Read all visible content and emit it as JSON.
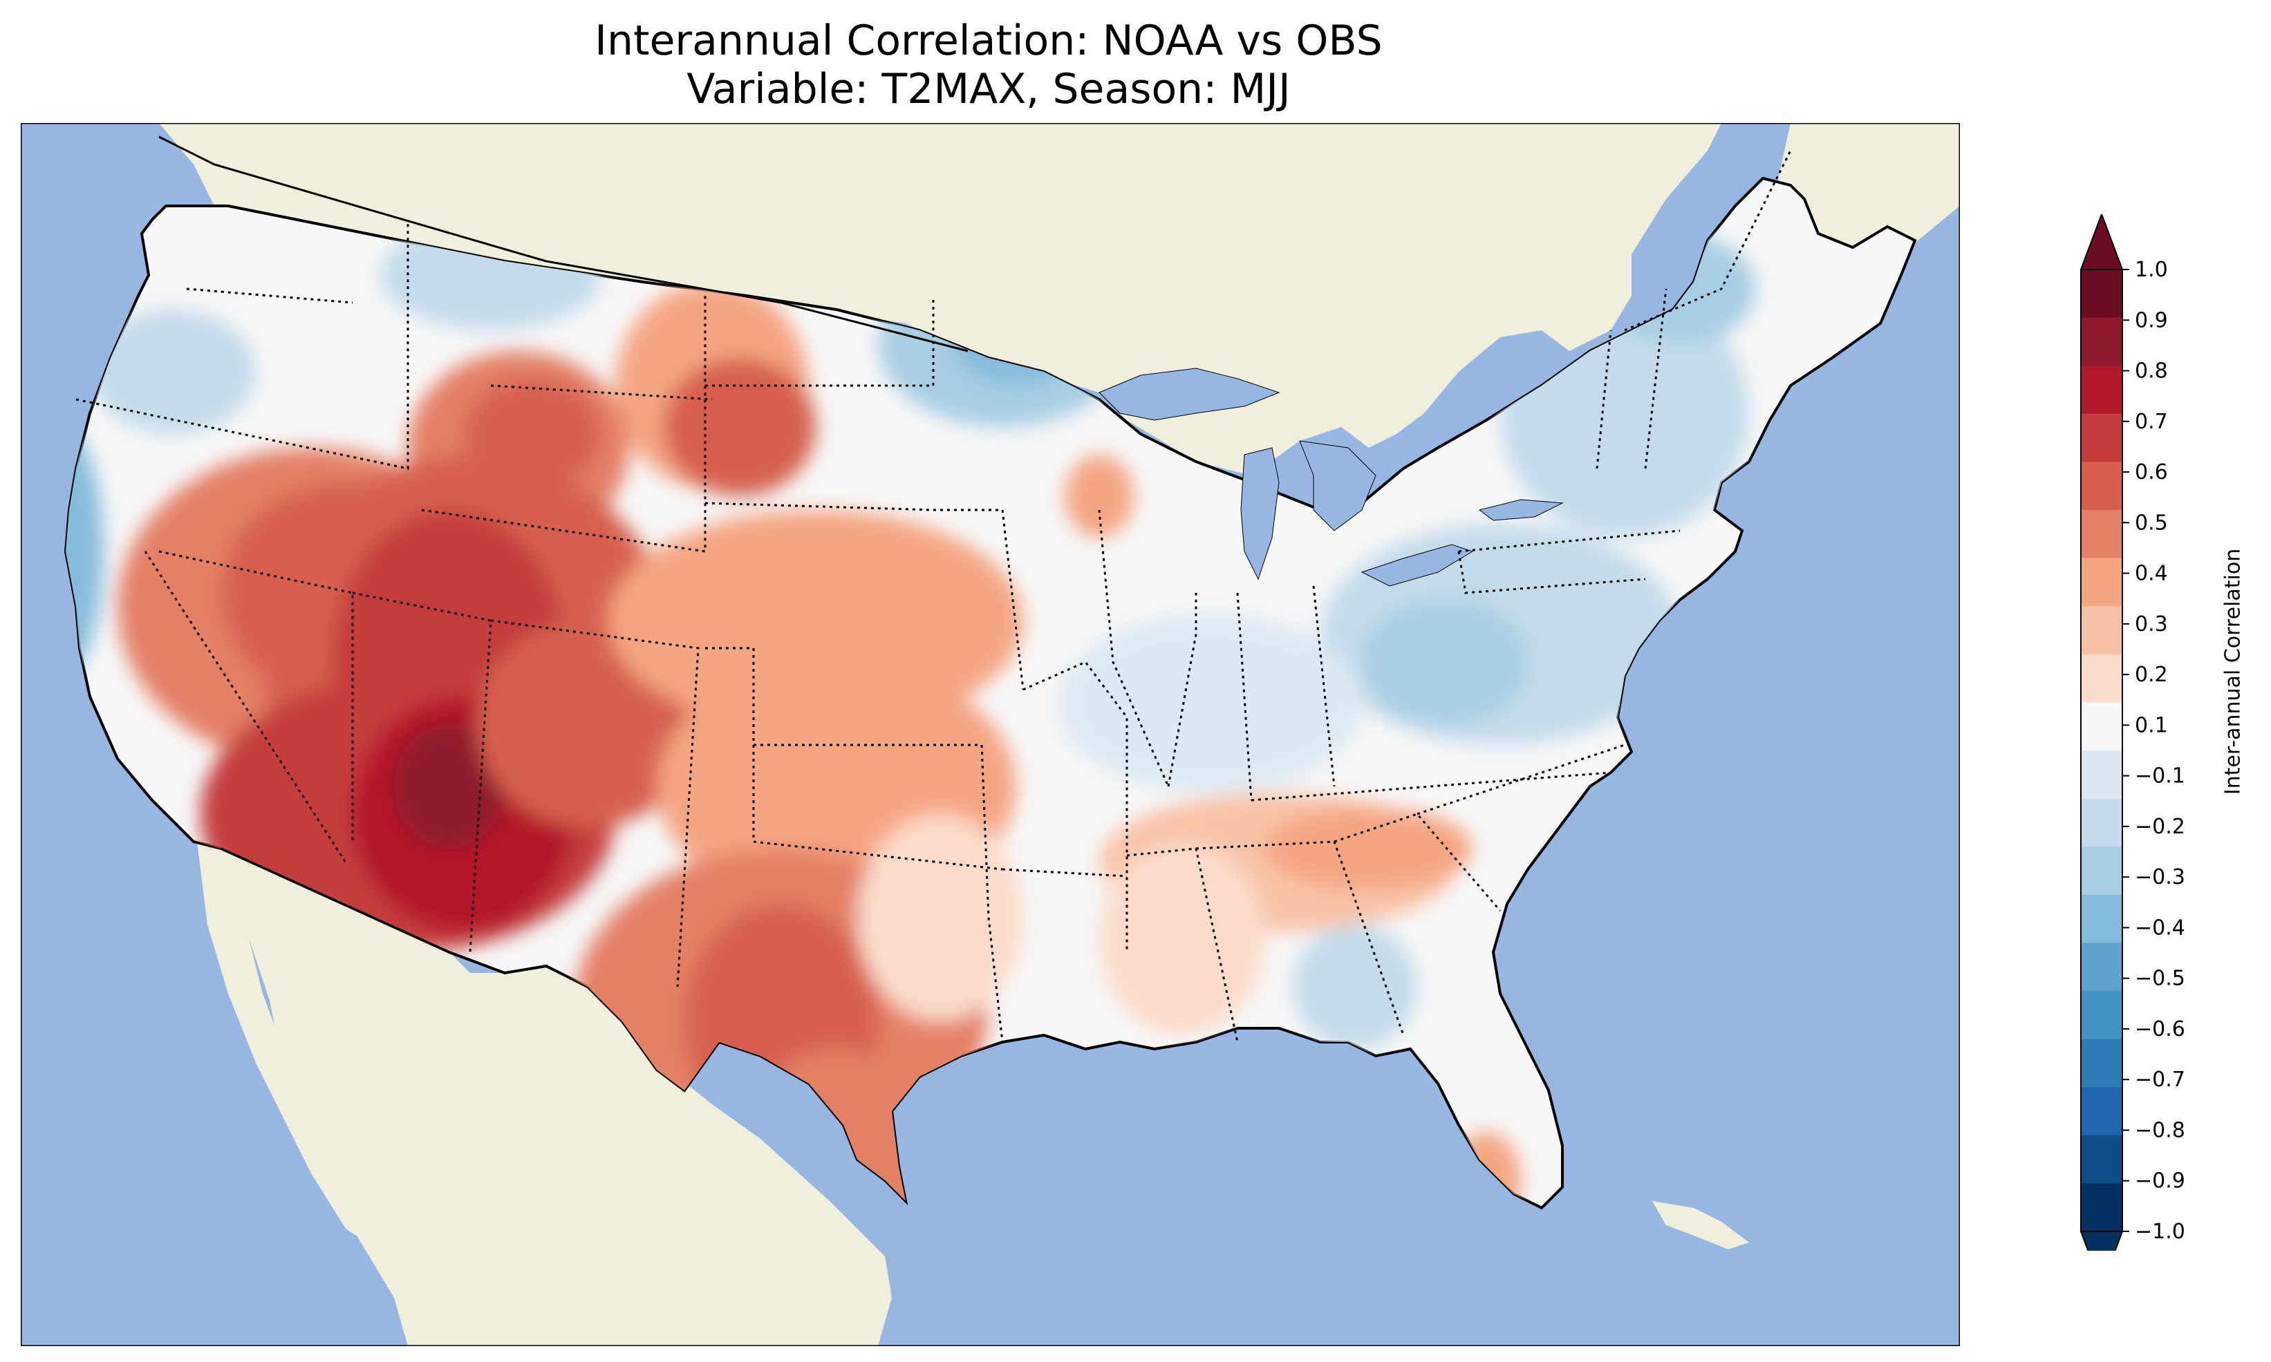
{
  "title": {
    "line1": "Interannual Correlation: NOAA vs OBS",
    "line2": "Variable: T2MAX, Season: MJJ"
  },
  "colorbar": {
    "label": "Inter-annual Correlation",
    "ticks": [
      "1.0",
      "0.9",
      "0.8",
      "0.7",
      "0.6",
      "0.5",
      "0.4",
      "0.3",
      "0.2",
      "0.1",
      "−0.1",
      "−0.2",
      "−0.3",
      "−0.4",
      "−0.5",
      "−0.6",
      "−0.7",
      "−0.8",
      "−0.9",
      "−1.0"
    ],
    "extend": "both",
    "colors_top_to_bottom": [
      "#6a0c22",
      "#8e1a2e",
      "#b2182b",
      "#c43c3c",
      "#d6604d",
      "#e48066",
      "#f4a582",
      "#f8c2a6",
      "#fbdccb",
      "#f7f7f7",
      "#dde9f2",
      "#c3dbea",
      "#a8cee3",
      "#86bcdb",
      "#5fa2cb",
      "#4393c3",
      "#2f7bb6",
      "#2166ac",
      "#0f4c8a",
      "#053061"
    ]
  },
  "map": {
    "colors": {
      "ocean": "#97b6e1",
      "land": "#efefdb",
      "neutral": "#f7f7f7"
    }
  }
}
